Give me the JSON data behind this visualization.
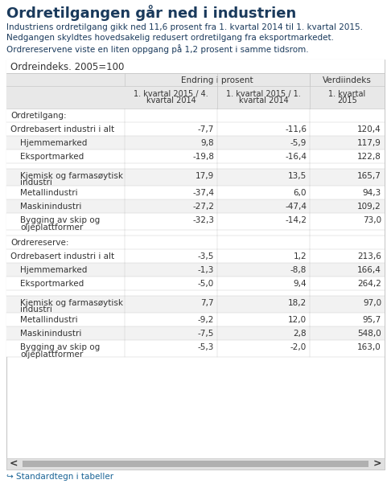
{
  "title": "Ordretilgangen går ned i industrien",
  "subtitle_lines": [
    "Industriens ordretilgang gikk ned 11,6 prosent fra 1. kvartal 2014 til 1. kvartal 2015.",
    "Nedgangen skyldtes hovedsakelig redusert ordretilgang fra eksportmarkedet.",
    "Ordrereservene viste en liten oppgang på 1,2 prosent i samme tidsrom."
  ],
  "table_title": "Ordreindeks. 2005=100",
  "col_headers_sub": [
    "1. kvartal 2015 / 4.\nkvartal 2014",
    "1. kvartal 2015 / 1.\nkvartal 2014",
    "1. kvartal\n2015"
  ],
  "rows": [
    {
      "label": "Ordretilgang:",
      "indent": 0,
      "section_header": true,
      "values": [
        "",
        "",
        ""
      ]
    },
    {
      "label": "Ordrebasert industri i alt",
      "indent": 0,
      "section_header": false,
      "values": [
        "-7,7",
        "-11,6",
        "120,4"
      ]
    },
    {
      "label": "Hjemmemarked",
      "indent": 1,
      "section_header": false,
      "values": [
        "9,8",
        "-5,9",
        "117,9"
      ]
    },
    {
      "label": "Eksportmarked",
      "indent": 1,
      "section_header": false,
      "values": [
        "-19,8",
        "-16,4",
        "122,8"
      ]
    },
    {
      "label": "",
      "indent": 0,
      "section_header": false,
      "spacer": true,
      "values": [
        "",
        "",
        ""
      ]
    },
    {
      "label": "Kjemisk og farmasøytisk\nindustri",
      "indent": 1,
      "section_header": false,
      "values": [
        "17,9",
        "13,5",
        "165,7"
      ]
    },
    {
      "label": "Metallindustri",
      "indent": 1,
      "section_header": false,
      "values": [
        "-37,4",
        "6,0",
        "94,3"
      ]
    },
    {
      "label": "Maskinindustri",
      "indent": 1,
      "section_header": false,
      "values": [
        "-27,2",
        "-47,4",
        "109,2"
      ]
    },
    {
      "label": "Bygging av skip og\noljeplattformer",
      "indent": 1,
      "section_header": false,
      "values": [
        "-32,3",
        "-14,2",
        "73,0"
      ]
    },
    {
      "label": "",
      "indent": 0,
      "section_header": false,
      "spacer": true,
      "values": [
        "",
        "",
        ""
      ]
    },
    {
      "label": "Ordrereserve:",
      "indent": 0,
      "section_header": true,
      "values": [
        "",
        "",
        ""
      ]
    },
    {
      "label": "Ordrebasert industri i alt",
      "indent": 0,
      "section_header": false,
      "values": [
        "-3,5",
        "1,2",
        "213,6"
      ]
    },
    {
      "label": "Hjemmemarked",
      "indent": 1,
      "section_header": false,
      "values": [
        "-1,3",
        "-8,8",
        "166,4"
      ]
    },
    {
      "label": "Eksportmarked",
      "indent": 1,
      "section_header": false,
      "values": [
        "-5,0",
        "9,4",
        "264,2"
      ]
    },
    {
      "label": "",
      "indent": 0,
      "section_header": false,
      "spacer": true,
      "values": [
        "",
        "",
        ""
      ]
    },
    {
      "label": "Kjemisk og farmasøytisk\nindustri",
      "indent": 1,
      "section_header": false,
      "values": [
        "7,7",
        "18,2",
        "97,0"
      ]
    },
    {
      "label": "Metallindustri",
      "indent": 1,
      "section_header": false,
      "values": [
        "-9,2",
        "12,0",
        "95,7"
      ]
    },
    {
      "label": "Maskinindustri",
      "indent": 1,
      "section_header": false,
      "values": [
        "-7,5",
        "2,8",
        "548,0"
      ]
    },
    {
      "label": "Bygging av skip og\noljeplattformer",
      "indent": 1,
      "section_header": false,
      "values": [
        "-5,3",
        "-2,0",
        "163,0"
      ]
    }
  ],
  "bg_color": "#ffffff",
  "title_color": "#1a3a5c",
  "subtitle_color": "#1a3a5c",
  "table_border_color": "#c8c8c8",
  "header_bg": "#e8e8e8",
  "row_alt_bg": "#f2f2f2",
  "row_bg": "#ffffff",
  "text_color": "#333333",
  "link_color": "#1a6496",
  "footer_text": "↪ Standardtegn i tabeller",
  "scrollbar_bg": "#e0e0e0",
  "scrollbar_thumb": "#b0b0b0"
}
